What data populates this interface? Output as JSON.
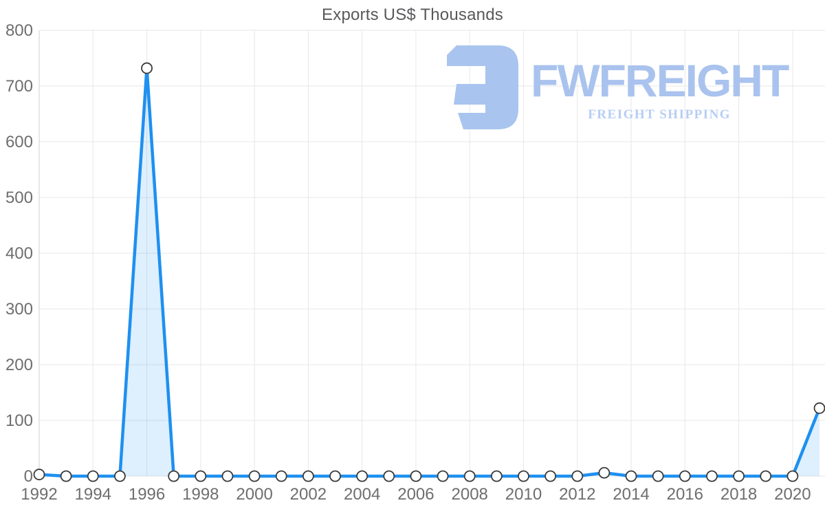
{
  "title": {
    "text": "Exports US$ Thousands",
    "color": "#58595b"
  },
  "watermark": {
    "name": "FWFREIGHT",
    "subtitle": "FREIGHT SHIPPING",
    "icon_color": "#a9c4ef",
    "name_color": "#a9c3ee",
    "subtitle_color": "#b7cdf4"
  },
  "chart_data": {
    "type": "area",
    "title": "Exports US$ Thousands",
    "xlabel": "",
    "ylabel": "",
    "x": [
      1992,
      1993,
      1994,
      1995,
      1996,
      1997,
      1998,
      1999,
      2000,
      2001,
      2002,
      2003,
      2004,
      2005,
      2006,
      2007,
      2008,
      2009,
      2010,
      2011,
      2012,
      2013,
      2014,
      2015,
      2016,
      2017,
      2018,
      2019,
      2020,
      2021
    ],
    "values": [
      3,
      0,
      0,
      0,
      732,
      0,
      0,
      0,
      0,
      0,
      0,
      0,
      0,
      0,
      0,
      0,
      0,
      0,
      0,
      0,
      0,
      6,
      0,
      0,
      0,
      0,
      0,
      0,
      0,
      122
    ],
    "series_name": "Exports US$ Thousands",
    "ylim": [
      0,
      800
    ],
    "y_ticks": [
      0,
      100,
      200,
      300,
      400,
      500,
      600,
      700,
      800
    ],
    "x_tick_labels": [
      1992,
      1994,
      1996,
      1998,
      2000,
      2002,
      2004,
      2006,
      2008,
      2010,
      2012,
      2014,
      2016,
      2018,
      2020
    ],
    "grid": true,
    "legend": false,
    "colors": {
      "line": "#1e90f0",
      "area_fill": "rgba(33,148,243,0.15)",
      "marker_fill": "#ffffff",
      "marker_stroke": "#3a3a3a",
      "gridline": "#e7e7e7",
      "axis_line": "#cfcfcf",
      "tick_label": "#6e6e6e"
    }
  }
}
